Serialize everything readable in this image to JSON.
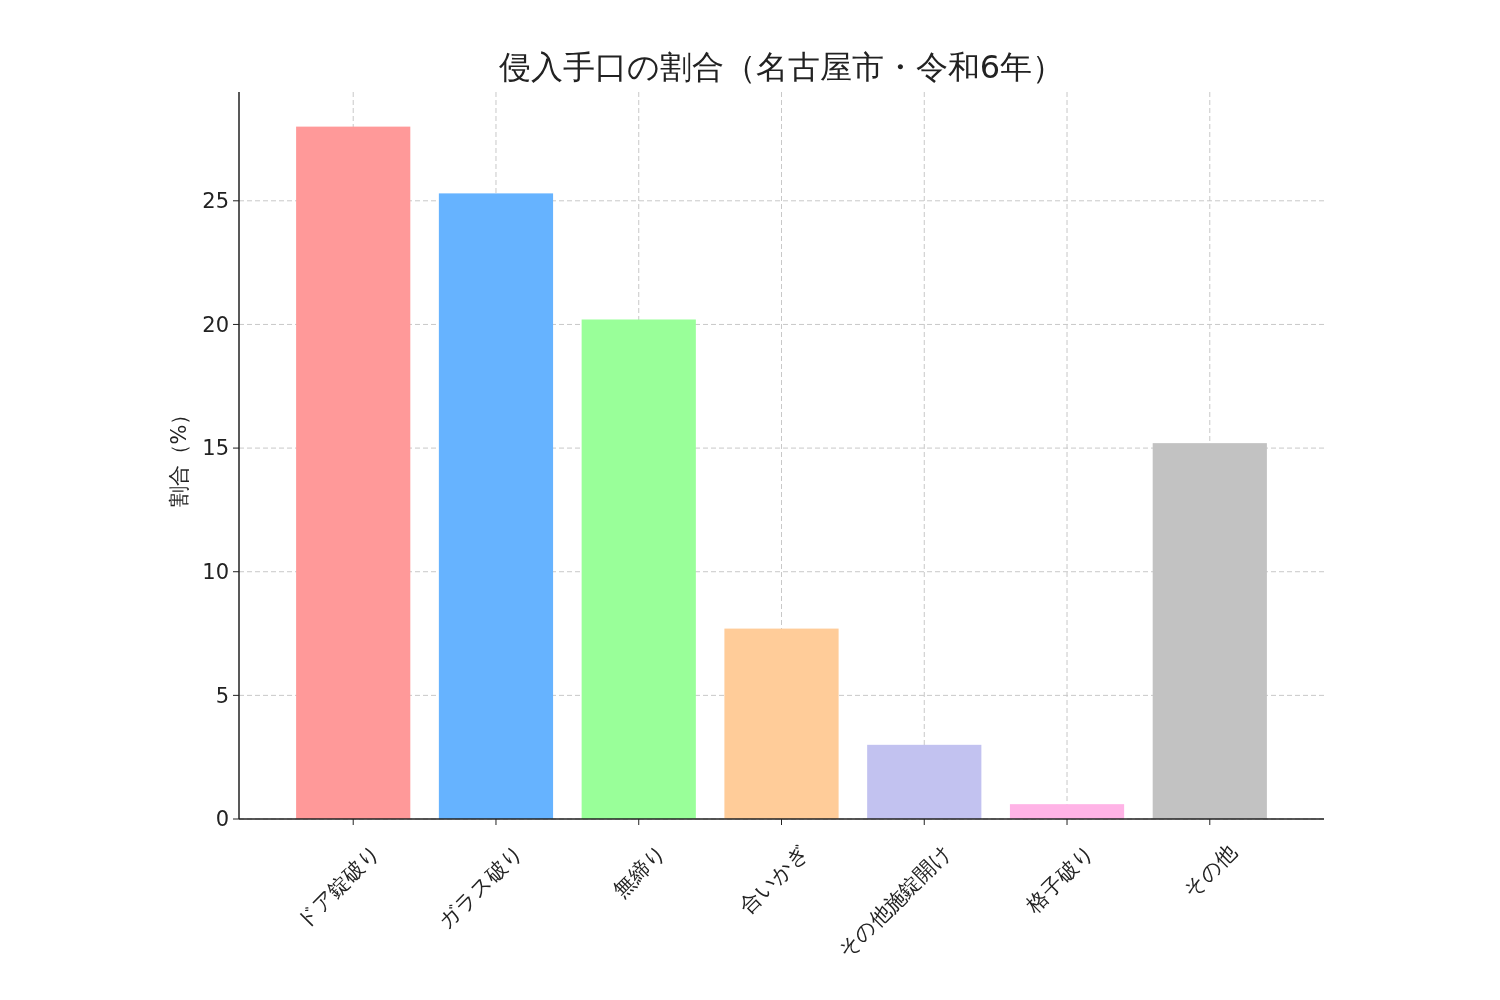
{
  "chart_data": {
    "type": "bar",
    "title": "侵入手口の割合（名古屋市・令和6年）",
    "ylabel": "割合（%）",
    "categories": [
      "ドア錠破り",
      "ガラス破り",
      "無締り",
      "合いかぎ",
      "その他施錠開け",
      "格子破り",
      "その他"
    ],
    "values": [
      28.0,
      25.3,
      20.2,
      7.7,
      3.0,
      0.6,
      15.2
    ],
    "colors": [
      "#ff9999",
      "#66b3ff",
      "#99ff99",
      "#ffcc99",
      "#c2c2f0",
      "#ffb3e6",
      "#c2c2c2"
    ],
    "ylim": [
      0,
      29.4
    ],
    "yticks": [
      0,
      5,
      10,
      15,
      20,
      25
    ],
    "grid": true
  }
}
